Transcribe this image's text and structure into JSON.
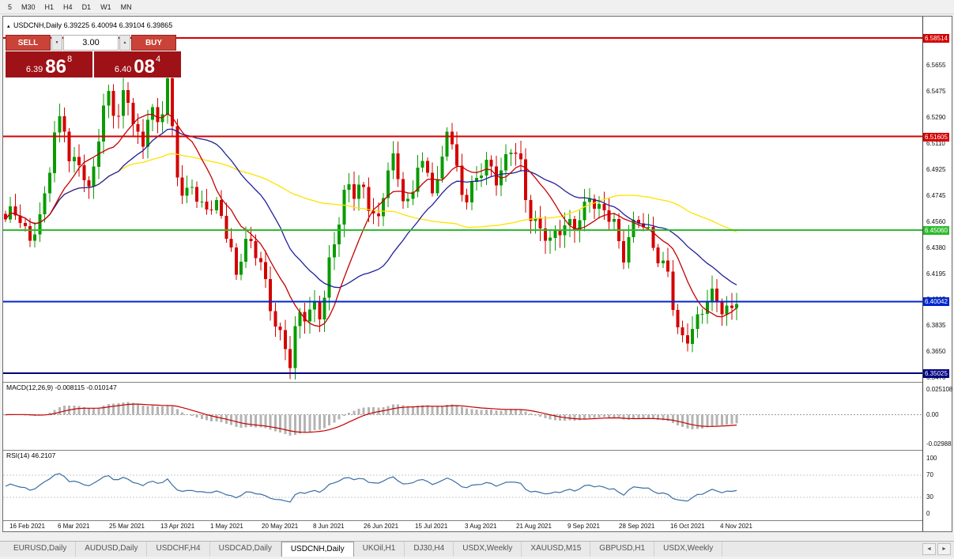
{
  "toolbar": {
    "timeframes": [
      "5",
      "M30",
      "H1",
      "H4",
      "D1",
      "W1",
      "MN"
    ]
  },
  "icons": {
    "symbol_marker": "▴",
    "spin_up": "▲",
    "spin_down": "▼",
    "tabs_prev": "◄",
    "tabs_next": "►"
  },
  "header": {
    "symbol": "USDCNH,Daily",
    "ohlc": "6.39225 6.40094 6.39104 6.39865"
  },
  "trade_panel": {
    "sell_label": "SELL",
    "buy_label": "BUY",
    "volume": "3.00",
    "sell_price": {
      "small": "6.39",
      "big": "86",
      "sup": "8"
    },
    "buy_price": {
      "small": "6.40",
      "big": "08",
      "sup": "4"
    }
  },
  "chart": {
    "colors": {
      "up": "#0a9b00",
      "down": "#d40000",
      "ma_fast": "#c40000",
      "ma_mid": "#20209a",
      "ma_slow": "#ffe200",
      "bg": "#ffffff"
    },
    "price_ticks": [
      "6.5655",
      "6.5475",
      "6.5290",
      "6.5110",
      "6.4925",
      "6.4745",
      "6.4560",
      "6.4380",
      "6.4195",
      "6.4015",
      "6.3835",
      "6.3650",
      "6.3470"
    ],
    "hlines": [
      {
        "price": 6.58514,
        "label": "6.58514",
        "color": "#d40000",
        "width": 2
      },
      {
        "price": 6.51605,
        "label": "6.51605",
        "color": "#d40000",
        "width": 2
      },
      {
        "price": 6.4506,
        "label": "6.45060",
        "color": "#2dbb2d",
        "width": 2
      },
      {
        "price": 6.40042,
        "label": "6.40042",
        "color": "#0026cc",
        "width": 2
      },
      {
        "price": 6.35025,
        "label": "6.35025",
        "color": "#000080",
        "width": 2
      }
    ],
    "last_close": 6.39865,
    "keyframes": [
      [
        0,
        6.455
      ],
      [
        15,
        6.465
      ],
      [
        30,
        6.445
      ],
      [
        45,
        6.455
      ],
      [
        62,
        6.52
      ],
      [
        72,
        6.535
      ],
      [
        82,
        6.49
      ],
      [
        95,
        6.5
      ],
      [
        105,
        6.478
      ],
      [
        118,
        6.515
      ],
      [
        130,
        6.545
      ],
      [
        142,
        6.53
      ],
      [
        152,
        6.555
      ],
      [
        162,
        6.52
      ],
      [
        172,
        6.505
      ],
      [
        182,
        6.54
      ],
      [
        195,
        6.525
      ],
      [
        205,
        6.55
      ],
      [
        215,
        6.5
      ],
      [
        225,
        6.472
      ],
      [
        235,
        6.487
      ],
      [
        245,
        6.46
      ],
      [
        258,
        6.47
      ],
      [
        270,
        6.47
      ],
      [
        282,
        6.44
      ],
      [
        292,
        6.415
      ],
      [
        302,
        6.448
      ],
      [
        312,
        6.44
      ],
      [
        322,
        6.428
      ],
      [
        332,
        6.4
      ],
      [
        342,
        6.388
      ],
      [
        352,
        6.372
      ],
      [
        360,
        6.356
      ],
      [
        370,
        6.388
      ],
      [
        380,
        6.394
      ],
      [
        390,
        6.4
      ],
      [
        400,
        6.388
      ],
      [
        412,
        6.432
      ],
      [
        422,
        6.46
      ],
      [
        432,
        6.487
      ],
      [
        442,
        6.473
      ],
      [
        452,
        6.478
      ],
      [
        462,
        6.468
      ],
      [
        472,
        6.458
      ],
      [
        482,
        6.488
      ],
      [
        492,
        6.498
      ],
      [
        502,
        6.478
      ],
      [
        512,
        6.468
      ],
      [
        522,
        6.498
      ],
      [
        532,
        6.488
      ],
      [
        542,
        6.482
      ],
      [
        552,
        6.498
      ],
      [
        560,
        6.527
      ],
      [
        570,
        6.49
      ],
      [
        580,
        6.473
      ],
      [
        590,
        6.483
      ],
      [
        600,
        6.49
      ],
      [
        610,
        6.494
      ],
      [
        620,
        6.488
      ],
      [
        630,
        6.498
      ],
      [
        640,
        6.508
      ],
      [
        650,
        6.498
      ],
      [
        660,
        6.468
      ],
      [
        670,
        6.458
      ],
      [
        680,
        6.448
      ],
      [
        690,
        6.438
      ],
      [
        700,
        6.453
      ],
      [
        710,
        6.458
      ],
      [
        720,
        6.452
      ],
      [
        730,
        6.458
      ],
      [
        740,
        6.477
      ],
      [
        750,
        6.468
      ],
      [
        760,
        6.462
      ],
      [
        770,
        6.452
      ],
      [
        780,
        6.43
      ],
      [
        790,
        6.452
      ],
      [
        800,
        6.458
      ],
      [
        810,
        6.448
      ],
      [
        820,
        6.44
      ],
      [
        830,
        6.43
      ],
      [
        840,
        6.418
      ],
      [
        848,
        6.378
      ],
      [
        858,
        6.372
      ],
      [
        868,
        6.384
      ],
      [
        878,
        6.39
      ],
      [
        888,
        6.4
      ],
      [
        898,
        6.404
      ],
      [
        908,
        6.398
      ],
      [
        918,
        6.394
      ],
      [
        925,
        6.3987
      ]
    ]
  },
  "macd": {
    "label": "MACD(12,26,9) -0.008115 -0.010147",
    "ticks": [
      "0.025108",
      "0.00",
      "-0.02988"
    ]
  },
  "rsi": {
    "label": "RSI(14) 46.2107",
    "ticks": [
      "100",
      "70",
      "30",
      "0"
    ]
  },
  "dates": {
    "labels": [
      "16 Feb 2021",
      "6 Mar 2021",
      "25 Mar 2021",
      "13 Apr 2021",
      "1 May 2021",
      "20 May 2021",
      "8 Jun 2021",
      "26 Jun 2021",
      "15 Jul 2021",
      "3 Aug 2021",
      "21 Aug 2021",
      "9 Sep 2021",
      "28 Sep 2021",
      "16 Oct 2021",
      "4 Nov 2021"
    ]
  },
  "tabs": {
    "active": 4,
    "items": [
      "EURUSD,Daily",
      "AUDUSD,Daily",
      "USDCHF,H4",
      "USDCAD,Daily",
      "USDCNH,Daily",
      "UKOil,H1",
      "DJ30,H4",
      "USDX,Weekly",
      "XAUUSD,M15",
      "GBPUSD,H1",
      "USDX,Weekly"
    ]
  }
}
